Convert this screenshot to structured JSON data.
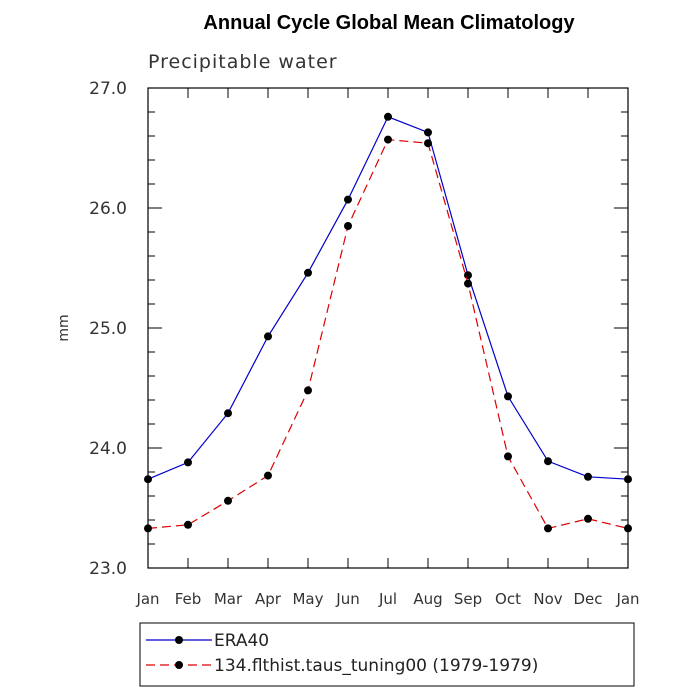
{
  "chart_data": {
    "type": "line",
    "title": "Annual Cycle Global Mean Climatology",
    "subtitle": "Precipitable water",
    "ylabel": "mm",
    "xlabel": "",
    "ylim": [
      23.0,
      27.0
    ],
    "yticks": [
      "23.0",
      "24.0",
      "25.0",
      "26.0",
      "27.0"
    ],
    "categories": [
      "Jan",
      "Feb",
      "Mar",
      "Apr",
      "May",
      "Jun",
      "Jul",
      "Aug",
      "Sep",
      "Oct",
      "Nov",
      "Dec",
      "Jan"
    ],
    "series": [
      {
        "name": "ERA40",
        "color": "#0000cc",
        "dash": "solid",
        "values": [
          23.74,
          23.88,
          24.29,
          24.93,
          25.46,
          26.07,
          26.76,
          26.63,
          25.44,
          24.43,
          23.89,
          23.76,
          23.74
        ]
      },
      {
        "name": "134.flthist.taus_tuning00 (1979-1979)",
        "color": "#dd0000",
        "dash": "dashed",
        "values": [
          23.33,
          23.36,
          23.56,
          23.77,
          24.48,
          25.85,
          26.57,
          26.54,
          25.37,
          23.93,
          23.33,
          23.41,
          23.33
        ]
      }
    ],
    "legend_position": "bottom"
  }
}
